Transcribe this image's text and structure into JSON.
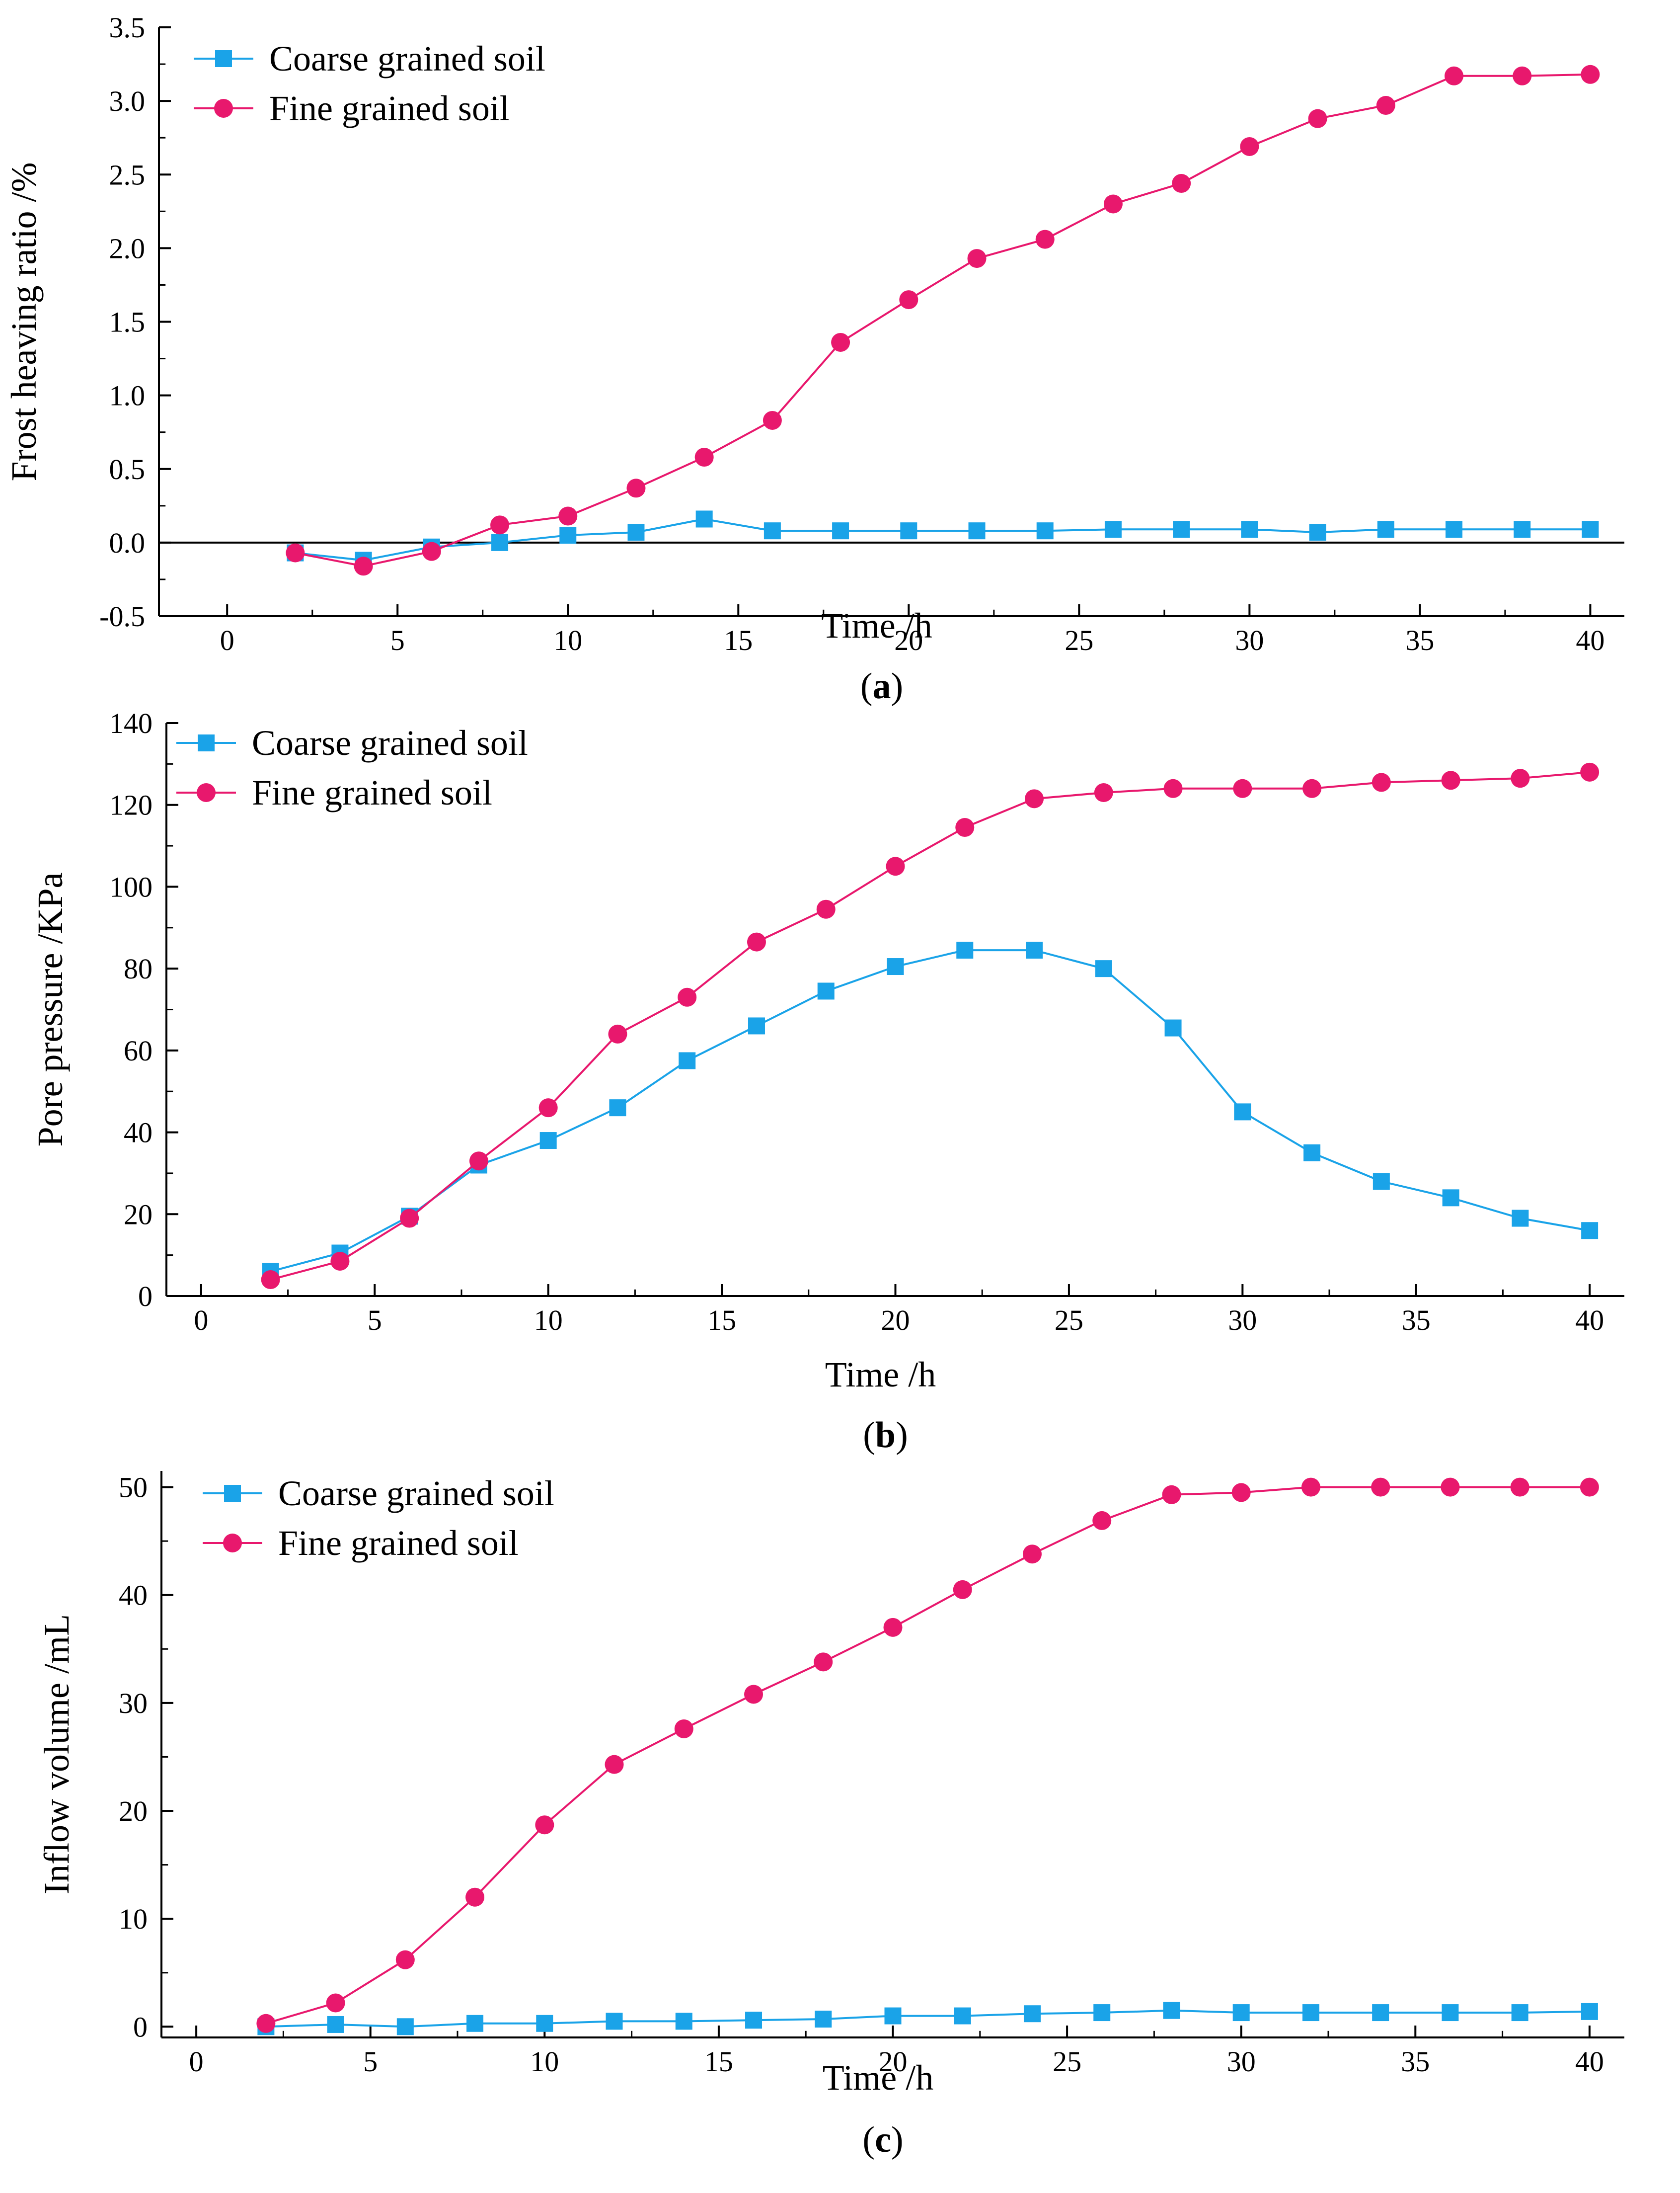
{
  "colors": {
    "coarse": "#1aa3e8",
    "fine": "#e8186d",
    "axis": "#000000"
  },
  "chart_data": [
    {
      "type": "line",
      "panel": "a",
      "caption_letter": "a",
      "xlabel": "Time /h",
      "ylabel": "Frost heaving ratio /%",
      "xlim": [
        -2,
        41
      ],
      "ylim": [
        -0.5,
        3.5
      ],
      "xticks": [
        0,
        5,
        10,
        15,
        20,
        25,
        30,
        35,
        40
      ],
      "yticks": [
        -0.5,
        0.0,
        0.5,
        1.0,
        1.5,
        2.0,
        2.5,
        3.0,
        3.5
      ],
      "ytick_labels": [
        "-0.5",
        "0.0",
        "0.5",
        "1.0",
        "1.5",
        "2.0",
        "2.5",
        "3.0",
        "3.5"
      ],
      "zero_line": true,
      "legend": "top-left",
      "x": [
        2,
        4,
        6,
        8,
        10,
        12,
        14,
        16,
        18,
        20,
        22,
        24,
        26,
        28,
        30,
        32,
        34,
        36,
        38,
        40
      ],
      "series": [
        {
          "name": "Coarse grained soil",
          "marker": "square",
          "color_key": "coarse",
          "values": [
            -0.07,
            -0.12,
            -0.03,
            0.0,
            0.05,
            0.07,
            0.16,
            0.08,
            0.08,
            0.08,
            0.08,
            0.08,
            0.09,
            0.09,
            0.09,
            0.07,
            0.09,
            0.09,
            0.09,
            0.09
          ]
        },
        {
          "name": "Fine grained soil",
          "marker": "circle",
          "color_key": "fine",
          "values": [
            -0.07,
            -0.16,
            -0.06,
            0.12,
            0.18,
            0.37,
            0.58,
            0.83,
            1.36,
            1.65,
            1.93,
            2.06,
            2.3,
            2.44,
            2.69,
            2.88,
            2.97,
            3.17,
            3.17,
            3.18
          ]
        }
      ]
    },
    {
      "type": "line",
      "panel": "b",
      "caption_letter": "b",
      "xlabel": "Time /h",
      "ylabel": "Pore pressure /KPa",
      "xlim": [
        -1,
        41
      ],
      "ylim": [
        0,
        140
      ],
      "xticks": [
        0,
        5,
        10,
        15,
        20,
        25,
        30,
        35,
        40
      ],
      "yticks": [
        0,
        20,
        40,
        60,
        80,
        100,
        120,
        140
      ],
      "ytick_labels": [
        "0",
        "20",
        "40",
        "60",
        "80",
        "100",
        "120",
        "140"
      ],
      "zero_line": false,
      "legend": "top-left",
      "x": [
        2,
        4,
        6,
        8,
        10,
        12,
        14,
        16,
        18,
        20,
        22,
        24,
        26,
        28,
        30,
        32,
        34,
        36,
        38,
        40
      ],
      "series": [
        {
          "name": "Coarse grained soil",
          "marker": "square",
          "color_key": "coarse",
          "values": [
            6,
            10.5,
            19.5,
            32,
            38,
            46,
            57.5,
            66,
            74.5,
            80.5,
            84.5,
            84.5,
            80,
            65.5,
            45,
            35,
            28,
            24,
            19,
            16
          ]
        },
        {
          "name": "Fine grained soil",
          "marker": "circle",
          "color_key": "fine",
          "values": [
            4,
            8.5,
            19,
            33,
            46,
            64,
            73,
            86.5,
            94.5,
            105,
            114.5,
            121.5,
            123,
            124,
            124,
            124,
            125.5,
            126,
            126.5,
            128
          ]
        }
      ]
    },
    {
      "type": "line",
      "panel": "c",
      "caption_letter": "c",
      "xlabel": "Time /h",
      "ylabel": "Inflow volume /mL",
      "xlim": [
        -1,
        41
      ],
      "ylim": [
        -1,
        51.5
      ],
      "xticks": [
        0,
        5,
        10,
        15,
        20,
        25,
        30,
        35,
        40
      ],
      "yticks": [
        0,
        10,
        20,
        30,
        40,
        50
      ],
      "ytick_labels": [
        "0",
        "10",
        "20",
        "30",
        "40",
        "50"
      ],
      "zero_line": false,
      "legend": "top-left",
      "x": [
        2,
        4,
        6,
        8,
        10,
        12,
        14,
        16,
        18,
        20,
        22,
        24,
        26,
        28,
        30,
        32,
        34,
        36,
        38,
        40
      ],
      "series": [
        {
          "name": "Coarse grained soil",
          "marker": "square",
          "color_key": "coarse",
          "values": [
            0.0,
            0.2,
            0.0,
            0.3,
            0.3,
            0.5,
            0.5,
            0.6,
            0.7,
            1.0,
            1.0,
            1.2,
            1.3,
            1.5,
            1.3,
            1.3,
            1.3,
            1.3,
            1.3,
            1.4
          ]
        },
        {
          "name": "Fine grained soil",
          "marker": "circle",
          "color_key": "fine",
          "values": [
            0.3,
            2.2,
            6.2,
            12.0,
            18.7,
            24.3,
            27.6,
            30.8,
            33.8,
            37.0,
            40.5,
            43.8,
            46.9,
            49.3,
            49.5,
            50.0,
            50.0,
            50.0,
            50.0,
            50.0
          ]
        }
      ]
    }
  ]
}
